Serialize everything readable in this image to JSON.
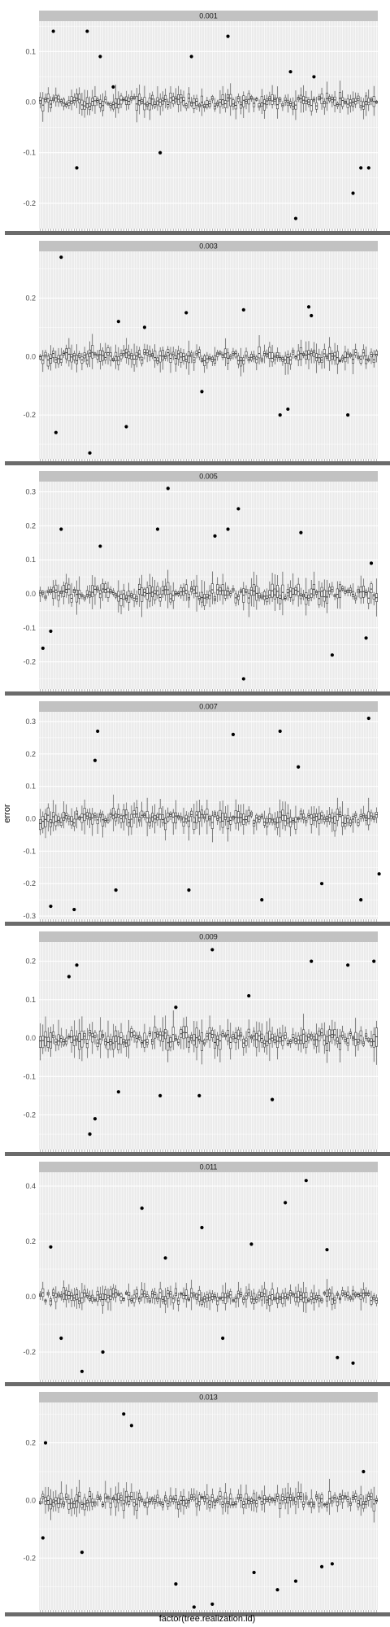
{
  "chart_data": {
    "type": "boxplot",
    "layout": "facet-wrap, 1 column, free y scales",
    "xlabel": "factor(tree.realization.id)",
    "ylabel": "error",
    "x_ticks_note": "x tick labels overlap and are illegible",
    "grid": true,
    "legend": "none",
    "colors": {
      "panel_bg": "#ebebeb",
      "strip_bg": "#c2c2c2",
      "grid": "#ffffff",
      "box_line": "#333333",
      "outlier": "#000000"
    },
    "facets": [
      {
        "label": "0.001",
        "ylim": [
          -0.25,
          0.16
        ],
        "yticks": [
          -0.2,
          -0.1,
          0.0,
          0.1
        ],
        "ytick_labels": [
          "-0.2",
          "-0.1",
          "0.0",
          "0.1"
        ],
        "noise": 0.03,
        "outliers": [
          [
            5,
            0.14
          ],
          [
            18,
            0.14
          ],
          [
            14,
            -0.13
          ],
          [
            23,
            0.09
          ],
          [
            46,
            -0.1
          ],
          [
            58,
            0.09
          ],
          [
            72,
            0.13
          ],
          [
            98,
            -0.23
          ],
          [
            120,
            -0.18
          ],
          [
            123,
            -0.13
          ],
          [
            126,
            -0.13
          ],
          [
            96,
            0.06
          ],
          [
            105,
            0.05
          ],
          [
            28,
            0.03
          ]
        ]
      },
      {
        "label": "0.003",
        "ylim": [
          -0.35,
          0.36
        ],
        "yticks": [
          -0.2,
          0.0,
          0.2
        ],
        "ytick_labels": [
          "-0.2",
          "0.0",
          "0.2"
        ],
        "noise": 0.05,
        "outliers": [
          [
            8,
            0.34
          ],
          [
            6,
            -0.26
          ],
          [
            19,
            -0.33
          ],
          [
            30,
            0.12
          ],
          [
            33,
            -0.24
          ],
          [
            56,
            0.15
          ],
          [
            62,
            -0.12
          ],
          [
            78,
            0.16
          ],
          [
            92,
            -0.2
          ],
          [
            95,
            -0.18
          ],
          [
            103,
            0.17
          ],
          [
            118,
            -0.2
          ],
          [
            104,
            0.14
          ],
          [
            40,
            0.1
          ]
        ]
      },
      {
        "label": "0.005",
        "ylim": [
          -0.28,
          0.33
        ],
        "yticks": [
          -0.2,
          -0.1,
          0.0,
          0.1,
          0.2,
          0.3
        ],
        "ytick_labels": [
          "-0.2",
          "-0.1",
          "0.0",
          "0.1",
          "0.2",
          "0.3"
        ],
        "noise": 0.05,
        "outliers": [
          [
            1,
            -0.16
          ],
          [
            8,
            0.19
          ],
          [
            23,
            0.14
          ],
          [
            45,
            0.19
          ],
          [
            49,
            0.31
          ],
          [
            67,
            0.17
          ],
          [
            72,
            0.19
          ],
          [
            76,
            0.25
          ],
          [
            78,
            -0.25
          ],
          [
            100,
            0.18
          ],
          [
            112,
            -0.18
          ],
          [
            125,
            -0.13
          ],
          [
            127,
            0.09
          ],
          [
            4,
            -0.11
          ]
        ]
      },
      {
        "label": "0.007",
        "ylim": [
          -0.31,
          0.33
        ],
        "yticks": [
          -0.3,
          -0.2,
          -0.1,
          0.0,
          0.1,
          0.2,
          0.3
        ],
        "ytick_labels": [
          "-0.3",
          "-0.2",
          "-0.1",
          "0.0",
          "0.1",
          "0.2",
          "0.3"
        ],
        "noise": 0.05,
        "outliers": [
          [
            4,
            -0.27
          ],
          [
            13,
            -0.28
          ],
          [
            22,
            0.27
          ],
          [
            29,
            -0.22
          ],
          [
            57,
            -0.22
          ],
          [
            74,
            0.26
          ],
          [
            85,
            -0.25
          ],
          [
            92,
            0.27
          ],
          [
            99,
            0.16
          ],
          [
            108,
            -0.2
          ],
          [
            123,
            -0.25
          ],
          [
            126,
            0.31
          ],
          [
            130,
            -0.17
          ],
          [
            21,
            0.18
          ]
        ]
      },
      {
        "label": "0.009",
        "ylim": [
          -0.29,
          0.25
        ],
        "yticks": [
          -0.2,
          -0.1,
          0.0,
          0.1,
          0.2
        ],
        "ytick_labels": [
          "-0.2",
          "-0.1",
          "0.0",
          "0.1",
          "0.2"
        ],
        "noise": 0.05,
        "outliers": [
          [
            14,
            0.19
          ],
          [
            19,
            -0.25
          ],
          [
            30,
            -0.14
          ],
          [
            46,
            -0.15
          ],
          [
            61,
            -0.15
          ],
          [
            66,
            0.23
          ],
          [
            80,
            0.11
          ],
          [
            89,
            -0.16
          ],
          [
            104,
            0.2
          ],
          [
            118,
            0.19
          ],
          [
            128,
            0.2
          ],
          [
            21,
            -0.21
          ],
          [
            11,
            0.16
          ],
          [
            52,
            0.08
          ]
        ]
      },
      {
        "label": "0.011",
        "ylim": [
          -0.3,
          0.45
        ],
        "yticks": [
          -0.2,
          0.0,
          0.2,
          0.4
        ],
        "ytick_labels": [
          "-0.2",
          "0.0",
          "0.2",
          "0.4"
        ],
        "noise": 0.05,
        "outliers": [
          [
            4,
            0.18
          ],
          [
            16,
            -0.27
          ],
          [
            39,
            0.32
          ],
          [
            62,
            0.25
          ],
          [
            81,
            0.19
          ],
          [
            94,
            0.34
          ],
          [
            102,
            0.42
          ],
          [
            114,
            -0.22
          ],
          [
            120,
            -0.24
          ],
          [
            48,
            0.14
          ],
          [
            24,
            -0.2
          ],
          [
            70,
            -0.15
          ],
          [
            8,
            -0.15
          ],
          [
            110,
            0.17
          ]
        ]
      },
      {
        "label": "0.013",
        "ylim": [
          -0.38,
          0.34
        ],
        "yticks": [
          -0.2,
          0.0,
          0.2
        ],
        "ytick_labels": [
          "-0.2",
          "0.0",
          "0.2"
        ],
        "noise": 0.05,
        "outliers": [
          [
            2,
            0.2
          ],
          [
            32,
            0.3
          ],
          [
            35,
            0.26
          ],
          [
            52,
            -0.29
          ],
          [
            59,
            -0.37
          ],
          [
            66,
            -0.36
          ],
          [
            82,
            -0.25
          ],
          [
            91,
            -0.31
          ],
          [
            98,
            -0.28
          ],
          [
            108,
            -0.23
          ],
          [
            112,
            -0.22
          ],
          [
            1,
            -0.13
          ],
          [
            16,
            -0.18
          ],
          [
            124,
            0.1
          ]
        ]
      }
    ]
  }
}
